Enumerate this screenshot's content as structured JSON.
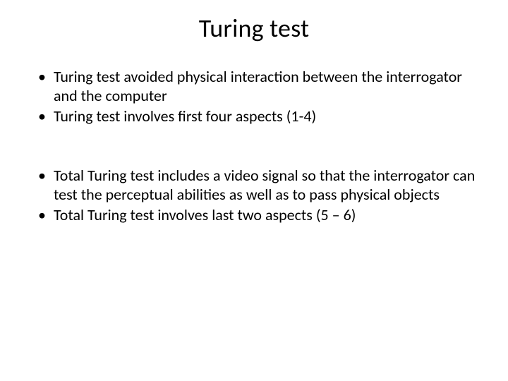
{
  "background_color": "#ffffff",
  "text_color": "#000000",
  "title": {
    "text": "Turing test",
    "fontsize": 36,
    "align": "center"
  },
  "bullet_fontsize": 22,
  "blocks": [
    {
      "items": [
        {
          "runs": [
            {
              "t": "Turing test "
            },
            {
              "t": "avoided physical interaction between the interrogator and the computer"
            }
          ]
        },
        {
          "runs": [
            {
              "t": "Turing test involves first four aspects (1-4)"
            }
          ]
        }
      ]
    },
    {
      "items": [
        {
          "runs": [
            {
              "t": "Total Turing test "
            },
            {
              "t": "includes a video signal so that the interrogator can test the perceptual abilities as well as to pass physical objects"
            }
          ]
        },
        {
          "runs": [
            {
              "t": "Total Turing test involves last two aspects (5 – 6)"
            }
          ]
        }
      ]
    }
  ]
}
